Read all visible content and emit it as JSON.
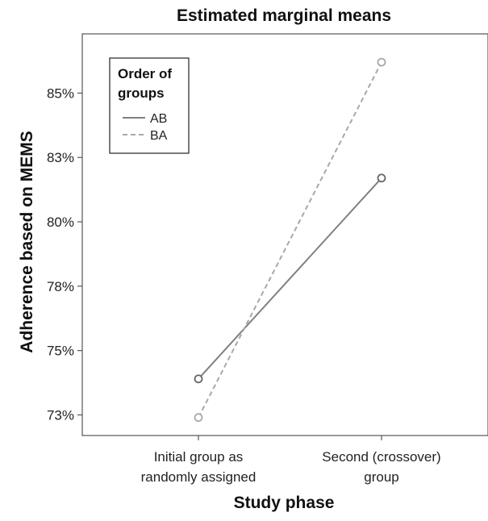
{
  "chart_data": {
    "type": "line",
    "title": "Estimated marginal means",
    "xlabel": "Study phase",
    "ylabel": "Adherence based on MEMS",
    "categories": [
      "Initial group as randomly assigned",
      "Second (crossover) group"
    ],
    "category_lines": [
      [
        "Initial group as",
        "randomly assigned"
      ],
      [
        "Second (crossover)",
        "group"
      ]
    ],
    "ylim": [
      71.7,
      87.3
    ],
    "yticks": [
      72.5,
      75,
      77.5,
      80,
      82.5,
      85
    ],
    "ytick_labels": [
      "73%",
      "75%",
      "78%",
      "80%",
      "83%",
      "85%"
    ],
    "legend": {
      "title_lines": [
        "Order of",
        "groups"
      ],
      "placement": "top-left"
    },
    "series": [
      {
        "name": "AB",
        "values": [
          73.9,
          81.7
        ],
        "style": "solid",
        "color": "#808080",
        "marker_color": "#666666"
      },
      {
        "name": "BA",
        "values": [
          72.4,
          86.2
        ],
        "style": "dashed",
        "color": "#a8a8a8",
        "marker_color": "#a8a8a8"
      }
    ],
    "grid": false
  }
}
